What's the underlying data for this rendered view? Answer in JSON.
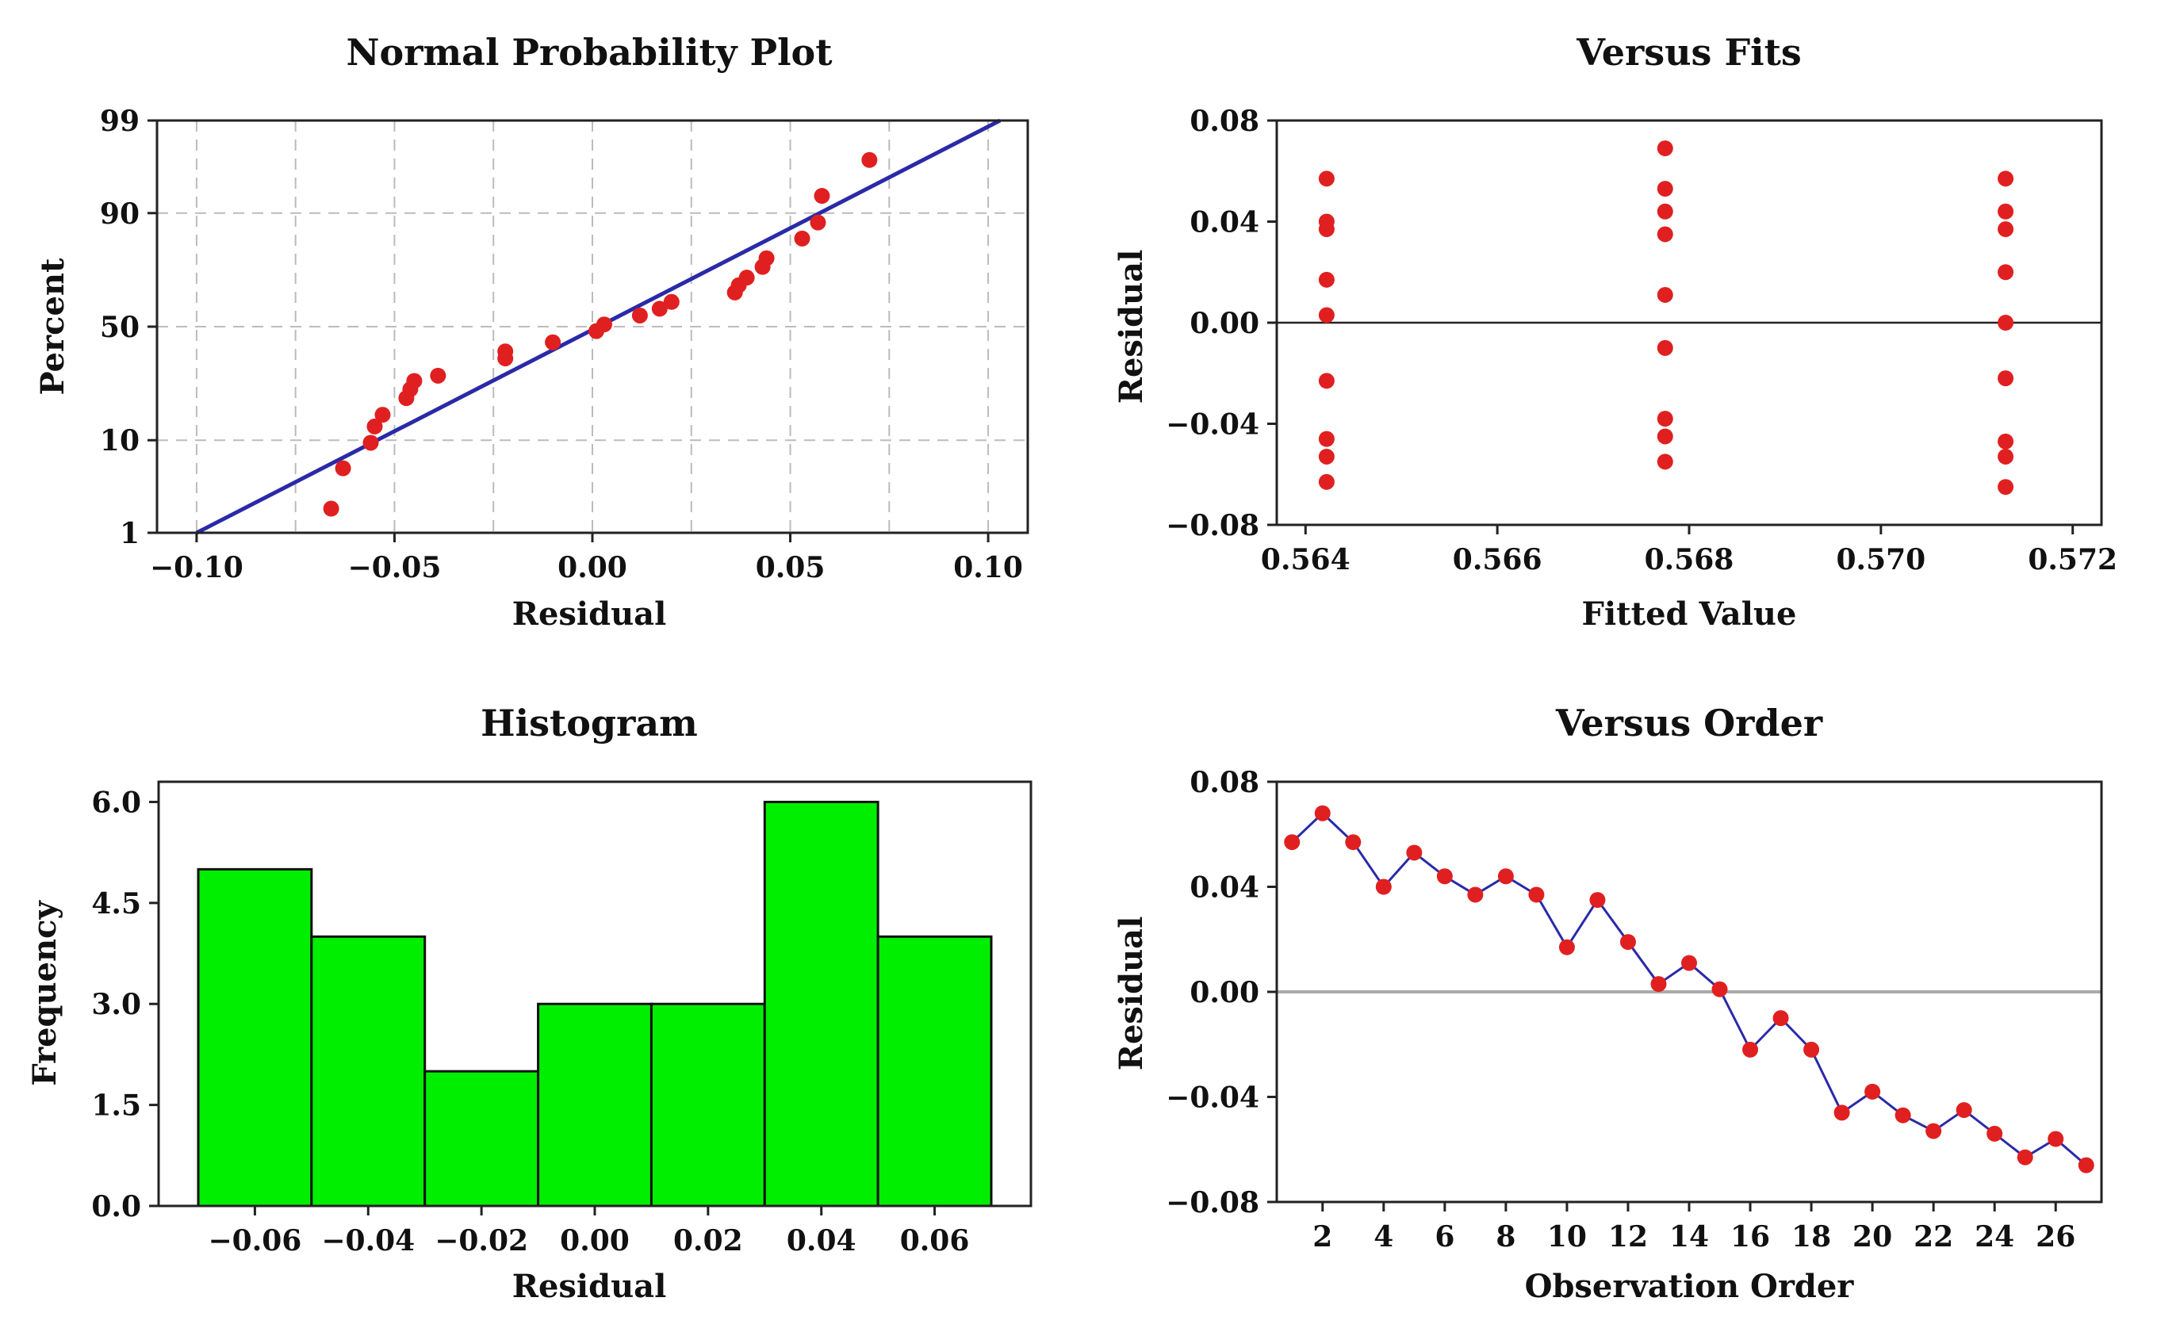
{
  "chart_data": [
    {
      "id": "npp",
      "type": "scatter",
      "title": "Normal Probability Plot",
      "xlabel": "Residual",
      "ylabel": "Percent",
      "xlim": [
        -0.11,
        0.11
      ],
      "ylim": [
        1,
        99
      ],
      "y_scale": "normal-probability",
      "x_ticks": [
        -0.1,
        -0.05,
        0.0,
        0.05,
        0.1
      ],
      "x_tick_labels": [
        "−0.10",
        "−0.05",
        "0.00",
        "0.05",
        "0.10"
      ],
      "y_ticks": [
        1,
        10,
        50,
        90,
        99
      ],
      "y_tick_labels": [
        "1",
        "10",
        "50",
        "90",
        "99"
      ],
      "grid": true,
      "point_color": "#e02020",
      "line_color": "#2a2aa8",
      "fit_line": {
        "x": [
          -0.1,
          0.103
        ],
        "y": [
          1,
          99
        ]
      },
      "points": [
        {
          "x": -0.066,
          "y": 2.0
        },
        {
          "x": -0.063,
          "y": 5.5
        },
        {
          "x": -0.056,
          "y": 9.5
        },
        {
          "x": -0.055,
          "y": 13
        },
        {
          "x": -0.053,
          "y": 16
        },
        {
          "x": -0.047,
          "y": 21
        },
        {
          "x": -0.046,
          "y": 24
        },
        {
          "x": -0.045,
          "y": 27
        },
        {
          "x": -0.039,
          "y": 29
        },
        {
          "x": -0.022,
          "y": 36
        },
        {
          "x": -0.022,
          "y": 39
        },
        {
          "x": -0.01,
          "y": 43
        },
        {
          "x": 0.001,
          "y": 48
        },
        {
          "x": 0.003,
          "y": 51
        },
        {
          "x": 0.012,
          "y": 55
        },
        {
          "x": 0.017,
          "y": 58
        },
        {
          "x": 0.02,
          "y": 61
        },
        {
          "x": 0.036,
          "y": 65
        },
        {
          "x": 0.037,
          "y": 68
        },
        {
          "x": 0.039,
          "y": 71
        },
        {
          "x": 0.043,
          "y": 75
        },
        {
          "x": 0.044,
          "y": 78
        },
        {
          "x": 0.053,
          "y": 84
        },
        {
          "x": 0.057,
          "y": 88
        },
        {
          "x": 0.058,
          "y": 93
        },
        {
          "x": 0.07,
          "y": 97
        }
      ]
    },
    {
      "id": "fits",
      "type": "scatter",
      "title": "Versus Fits",
      "xlabel": "Fitted Value",
      "ylabel": "Residual",
      "xlim": [
        0.5637,
        0.5723
      ],
      "ylim": [
        -0.08,
        0.08
      ],
      "x_ticks": [
        0.564,
        0.566,
        0.568,
        0.57,
        0.572
      ],
      "x_tick_labels": [
        "0.564",
        "0.566",
        "0.568",
        "0.570",
        "0.572"
      ],
      "y_ticks": [
        -0.08,
        -0.04,
        0.0,
        0.04,
        0.08
      ],
      "y_tick_labels": [
        "−0.08",
        "−0.04",
        "0.00",
        "0.04",
        "0.08"
      ],
      "reference_line": 0.0,
      "point_color": "#e02020",
      "points": [
        {
          "x": 0.56422,
          "y": 0.057
        },
        {
          "x": 0.56422,
          "y": 0.04
        },
        {
          "x": 0.56422,
          "y": 0.037
        },
        {
          "x": 0.56422,
          "y": 0.017
        },
        {
          "x": 0.56422,
          "y": 0.003
        },
        {
          "x": 0.56422,
          "y": -0.023
        },
        {
          "x": 0.56422,
          "y": -0.046
        },
        {
          "x": 0.56422,
          "y": -0.053
        },
        {
          "x": 0.56422,
          "y": -0.063
        },
        {
          "x": 0.56775,
          "y": 0.069
        },
        {
          "x": 0.56775,
          "y": 0.053
        },
        {
          "x": 0.56775,
          "y": 0.044
        },
        {
          "x": 0.56775,
          "y": 0.035
        },
        {
          "x": 0.56775,
          "y": 0.011
        },
        {
          "x": 0.56775,
          "y": -0.01
        },
        {
          "x": 0.56775,
          "y": -0.038
        },
        {
          "x": 0.56775,
          "y": -0.045
        },
        {
          "x": 0.56775,
          "y": -0.055
        },
        {
          "x": 0.5713,
          "y": 0.057
        },
        {
          "x": 0.5713,
          "y": 0.044
        },
        {
          "x": 0.5713,
          "y": 0.037
        },
        {
          "x": 0.5713,
          "y": 0.02
        },
        {
          "x": 0.5713,
          "y": 0.0
        },
        {
          "x": 0.5713,
          "y": -0.022
        },
        {
          "x": 0.5713,
          "y": -0.047
        },
        {
          "x": 0.5713,
          "y": -0.053
        },
        {
          "x": 0.5713,
          "y": -0.065
        }
      ]
    },
    {
      "id": "hist",
      "type": "bar",
      "title": "Histogram",
      "xlabel": "Residual",
      "ylabel": "Frequency",
      "xlim": [
        -0.077,
        0.077
      ],
      "ylim": [
        0,
        6.3
      ],
      "x_ticks": [
        -0.06,
        -0.04,
        -0.02,
        0.0,
        0.02,
        0.04,
        0.06
      ],
      "x_tick_labels": [
        "−0.06",
        "−0.04",
        "−0.02",
        "0.00",
        "0.02",
        "0.04",
        "0.06"
      ],
      "y_ticks": [
        0,
        1.5,
        3.0,
        4.5,
        6.0
      ],
      "y_tick_labels": [
        "0.0",
        "1.5",
        "3.0",
        "4.5",
        "6.0"
      ],
      "bar_color": "#00ee00",
      "bins": [
        {
          "from": -0.07,
          "to": -0.05,
          "count": 5
        },
        {
          "from": -0.05,
          "to": -0.03,
          "count": 4
        },
        {
          "from": -0.03,
          "to": -0.01,
          "count": 2
        },
        {
          "from": -0.01,
          "to": 0.01,
          "count": 3
        },
        {
          "from": 0.01,
          "to": 0.03,
          "count": 3
        },
        {
          "from": 0.03,
          "to": 0.05,
          "count": 6
        },
        {
          "from": 0.05,
          "to": 0.07,
          "count": 4
        }
      ]
    },
    {
      "id": "order",
      "type": "line",
      "title": "Versus Order",
      "xlabel": "Observation Order",
      "ylabel": "Residual",
      "xlim": [
        0.5,
        27.5
      ],
      "ylim": [
        -0.08,
        0.08
      ],
      "x_ticks": [
        2,
        4,
        6,
        8,
        10,
        12,
        14,
        16,
        18,
        20,
        22,
        24,
        26
      ],
      "x_tick_labels": [
        "2",
        "4",
        "6",
        "8",
        "10",
        "12",
        "14",
        "16",
        "18",
        "20",
        "22",
        "24",
        "26"
      ],
      "y_ticks": [
        -0.08,
        -0.04,
        0.0,
        0.04,
        0.08
      ],
      "y_tick_labels": [
        "−0.08",
        "−0.04",
        "0.00",
        "0.04",
        "0.08"
      ],
      "reference_line": 0.0,
      "point_color": "#e02020",
      "line_color": "#2a2aa8",
      "x": [
        1,
        2,
        3,
        4,
        5,
        6,
        7,
        8,
        9,
        10,
        11,
        12,
        13,
        14,
        15,
        16,
        17,
        18,
        19,
        20,
        21,
        22,
        23,
        24,
        25,
        26,
        27
      ],
      "y": [
        0.057,
        0.068,
        0.057,
        0.04,
        0.053,
        0.044,
        0.037,
        0.044,
        0.037,
        0.017,
        0.035,
        0.019,
        0.003,
        0.011,
        0.001,
        -0.022,
        -0.01,
        -0.022,
        -0.046,
        -0.038,
        -0.047,
        -0.053,
        -0.045,
        -0.054,
        -0.063,
        -0.056,
        -0.066
      ]
    }
  ]
}
